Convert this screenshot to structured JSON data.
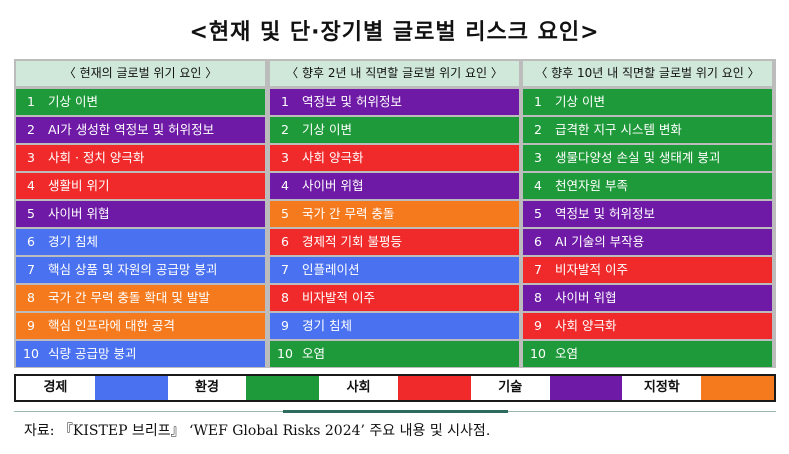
{
  "title": "<현재 및 단·장기별 글로벌 리스크 요인>",
  "colors": {
    "경제": "#4a72f0",
    "환경": "#1e9a3a",
    "사회": "#f02a2a",
    "기술": "#6e1aa6",
    "지정학": "#f57a1e"
  },
  "columns": [
    {
      "header": "〈 현재의 글로벌 위기 요인 〉",
      "rows": [
        {
          "num": "1",
          "label": "기상 이변",
          "category": "환경"
        },
        {
          "num": "2",
          "label": "AI가 생성한 역정보 및 허위정보",
          "category": "기술"
        },
        {
          "num": "3",
          "label": "사회 · 정치 양극화",
          "category": "사회"
        },
        {
          "num": "4",
          "label": "생활비 위기",
          "category": "사회"
        },
        {
          "num": "5",
          "label": "사이버 위협",
          "category": "기술"
        },
        {
          "num": "6",
          "label": "경기 침체",
          "category": "경제"
        },
        {
          "num": "7",
          "label": "핵심 상품 및 자원의 공급망 붕괴",
          "category": "경제"
        },
        {
          "num": "8",
          "label": "국가 간 무력 충돌 확대 및 발발",
          "category": "지정학"
        },
        {
          "num": "9",
          "label": "핵심 인프라에 대한 공격",
          "category": "지정학"
        },
        {
          "num": "10",
          "label": "식량 공급망 붕괴",
          "category": "경제"
        }
      ]
    },
    {
      "header": "〈 향후 2년 내 직면할 글로벌 위기 요인 〉",
      "rows": [
        {
          "num": "1",
          "label": "역정보 및 허위정보",
          "category": "기술"
        },
        {
          "num": "2",
          "label": "기상 이변",
          "category": "환경"
        },
        {
          "num": "3",
          "label": "사회 양극화",
          "category": "사회"
        },
        {
          "num": "4",
          "label": "사이버 위협",
          "category": "기술"
        },
        {
          "num": "5",
          "label": "국가 간 무력 충돌",
          "category": "지정학"
        },
        {
          "num": "6",
          "label": "경제적 기회 불평등",
          "category": "사회"
        },
        {
          "num": "7",
          "label": "인플레이션",
          "category": "경제"
        },
        {
          "num": "8",
          "label": "비자발적 이주",
          "category": "사회"
        },
        {
          "num": "9",
          "label": "경기 침체",
          "category": "경제"
        },
        {
          "num": "10",
          "label": "오염",
          "category": "환경"
        }
      ]
    },
    {
      "header": "〈 향후 10년 내 직면할 글로벌 위기 요인 〉",
      "rows": [
        {
          "num": "1",
          "label": "기상 이변",
          "category": "환경"
        },
        {
          "num": "2",
          "label": "급격한 지구 시스템 변화",
          "category": "환경"
        },
        {
          "num": "3",
          "label": "생물다양성 손실 및 생태계 붕괴",
          "category": "환경"
        },
        {
          "num": "4",
          "label": "천연자원 부족",
          "category": "환경"
        },
        {
          "num": "5",
          "label": "역정보 및 허위정보",
          "category": "기술"
        },
        {
          "num": "6",
          "label": "AI 기술의 부작용",
          "category": "기술"
        },
        {
          "num": "7",
          "label": "비자발적 이주",
          "category": "사회"
        },
        {
          "num": "8",
          "label": "사이버 위협",
          "category": "기술"
        },
        {
          "num": "9",
          "label": "사회 양극화",
          "category": "사회"
        },
        {
          "num": "10",
          "label": "오염",
          "category": "환경"
        }
      ]
    }
  ],
  "legend": [
    {
      "label": "경제",
      "color": "#4a72f0"
    },
    {
      "label": "환경",
      "color": "#1e9a3a"
    },
    {
      "label": "사회",
      "color": "#f02a2a"
    },
    {
      "label": "기술",
      "color": "#6e1aa6"
    },
    {
      "label": "지정학",
      "color": "#f57a1e"
    }
  ],
  "source": "자료: 『KISTEP 브리프』 ‘WEF Global Risks 2024’ 주요 내용 및 시사점."
}
